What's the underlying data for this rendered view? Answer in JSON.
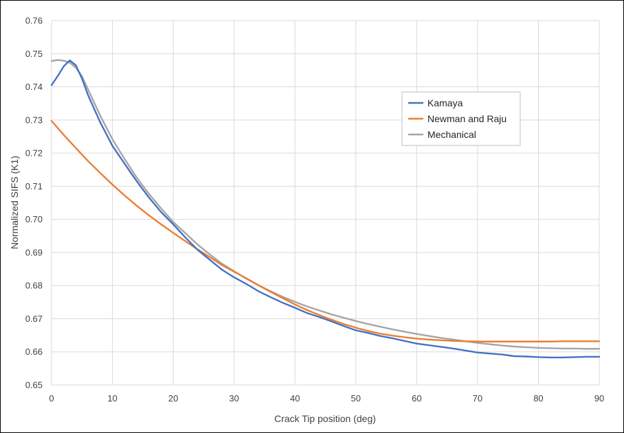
{
  "chart_data": {
    "type": "line",
    "title": "",
    "xlabel": "Crack Tip position (deg)",
    "ylabel": "Normalized SIFS (K1)",
    "xlim": [
      0,
      90
    ],
    "ylim": [
      0.65,
      0.76
    ],
    "xticks": [
      0,
      10,
      20,
      30,
      40,
      50,
      60,
      70,
      80,
      90
    ],
    "yticks": [
      "0.65",
      "0.66",
      "0.67",
      "0.68",
      "0.69",
      "0.70",
      "0.71",
      "0.72",
      "0.73",
      "0.74",
      "0.75",
      "0.76"
    ],
    "grid": true,
    "legend_position": "top-right",
    "series": [
      {
        "name": "Kamaya",
        "color": "#4472C4",
        "x": [
          0,
          1,
          2,
          3,
          4,
          5,
          6,
          8,
          10,
          12,
          14,
          16,
          18,
          20,
          22,
          24,
          26,
          28,
          30,
          32,
          34,
          36,
          38,
          40,
          42,
          44,
          46,
          48,
          50,
          52,
          54,
          56,
          58,
          60,
          62,
          64,
          66,
          68,
          70,
          72,
          74,
          76,
          78,
          80,
          82,
          84,
          86,
          88,
          90
        ],
        "y": [
          0.7405,
          0.7432,
          0.7462,
          0.748,
          0.7465,
          0.7425,
          0.7375,
          0.7293,
          0.7222,
          0.7168,
          0.7115,
          0.7066,
          0.7022,
          0.6985,
          0.6945,
          0.6908,
          0.6878,
          0.6848,
          0.6825,
          0.6805,
          0.6783,
          0.6765,
          0.6748,
          0.6733,
          0.6717,
          0.6705,
          0.6692,
          0.6678,
          0.6665,
          0.6657,
          0.6648,
          0.6641,
          0.6633,
          0.6625,
          0.662,
          0.6615,
          0.661,
          0.6604,
          0.6598,
          0.6595,
          0.6592,
          0.6587,
          0.6586,
          0.6584,
          0.6583,
          0.6583,
          0.6584,
          0.6585,
          0.6585
        ]
      },
      {
        "name": "Newman and Raju",
        "color": "#ED7D31",
        "x": [
          0,
          2,
          4,
          6,
          8,
          10,
          12,
          14,
          16,
          18,
          20,
          22,
          24,
          26,
          28,
          30,
          32,
          34,
          36,
          38,
          40,
          42,
          44,
          46,
          48,
          50,
          52,
          54,
          56,
          58,
          60,
          62,
          64,
          66,
          68,
          70,
          72,
          74,
          76,
          78,
          80,
          82,
          84,
          86,
          88,
          90
        ],
        "y": [
          0.7297,
          0.7255,
          0.7215,
          0.7176,
          0.714,
          0.7105,
          0.7072,
          0.7041,
          0.7012,
          0.6985,
          0.6959,
          0.6934,
          0.6909,
          0.6886,
          0.6862,
          0.6842,
          0.6822,
          0.6801,
          0.6781,
          0.6762,
          0.6743,
          0.6726,
          0.6711,
          0.6697,
          0.6684,
          0.6673,
          0.6663,
          0.6655,
          0.6649,
          0.6644,
          0.664,
          0.6637,
          0.6635,
          0.6633,
          0.6632,
          0.6631,
          0.6631,
          0.6631,
          0.6631,
          0.6631,
          0.6631,
          0.6631,
          0.6632,
          0.6632,
          0.6632,
          0.6632
        ]
      },
      {
        "name": "Mechanical",
        "color": "#A5A5A5",
        "x": [
          0,
          1,
          2,
          3,
          4,
          5,
          6,
          8,
          10,
          12,
          14,
          16,
          18,
          20,
          22,
          24,
          26,
          28,
          30,
          32,
          34,
          36,
          38,
          40,
          42,
          44,
          46,
          48,
          50,
          52,
          54,
          56,
          58,
          60,
          62,
          64,
          66,
          68,
          70,
          72,
          74,
          76,
          78,
          80,
          82,
          84,
          86,
          88,
          90
        ],
        "y": [
          0.7478,
          0.7481,
          0.7479,
          0.7473,
          0.7458,
          0.7432,
          0.7392,
          0.7313,
          0.7242,
          0.7182,
          0.7126,
          0.7077,
          0.7033,
          0.6992,
          0.6958,
          0.6924,
          0.6894,
          0.6866,
          0.6843,
          0.6821,
          0.6801,
          0.6783,
          0.6766,
          0.6751,
          0.6737,
          0.6725,
          0.6713,
          0.6703,
          0.6693,
          0.6684,
          0.6676,
          0.6668,
          0.6661,
          0.6654,
          0.6648,
          0.6642,
          0.6637,
          0.6632,
          0.6627,
          0.6623,
          0.6619,
          0.6616,
          0.6614,
          0.6612,
          0.6611,
          0.661,
          0.661,
          0.6609,
          0.6609
        ]
      }
    ]
  }
}
